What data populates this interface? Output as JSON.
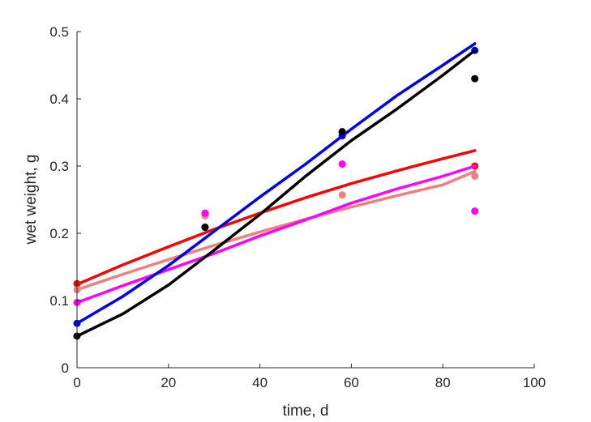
{
  "chart_data": {
    "type": "scatter",
    "title": "",
    "xlabel": "time, d",
    "ylabel": "wet weight, g",
    "xlim": [
      0,
      100
    ],
    "ylim": [
      0,
      0.5
    ],
    "xticks": [
      0,
      20,
      40,
      60,
      80,
      100
    ],
    "yticks": [
      0,
      0.1,
      0.2,
      0.3,
      0.4,
      0.5
    ],
    "xtick_labels": [
      "0",
      "20",
      "40",
      "60",
      "80",
      "100"
    ],
    "ytick_labels": [
      "0",
      "0.1",
      "0.2",
      "0.3",
      "0.4",
      "0.5"
    ],
    "grid": false,
    "legend": "none",
    "series": [
      {
        "color": "#ff0000",
        "points": [
          [
            0,
            0.125
          ],
          [
            28,
            0.228
          ],
          [
            58,
            0.351
          ],
          [
            87,
            0.3
          ]
        ],
        "fit": [
          [
            0,
            0.124
          ],
          [
            10,
            0.153
          ],
          [
            20,
            0.18
          ],
          [
            30,
            0.206
          ],
          [
            40,
            0.23
          ],
          [
            50,
            0.253
          ],
          [
            60,
            0.274
          ],
          [
            70,
            0.293
          ],
          [
            80,
            0.311
          ],
          [
            87,
            0.323
          ]
        ]
      },
      {
        "color": "#f08080",
        "points": [
          [
            0,
            0.116
          ],
          [
            28,
            0.226
          ],
          [
            58,
            0.257
          ],
          [
            87,
            0.285
          ]
        ],
        "fit": [
          [
            0,
            0.116
          ],
          [
            10,
            0.139
          ],
          [
            20,
            0.161
          ],
          [
            30,
            0.182
          ],
          [
            40,
            0.202
          ],
          [
            50,
            0.221
          ],
          [
            60,
            0.239
          ],
          [
            70,
            0.256
          ],
          [
            80,
            0.272
          ],
          [
            87,
            0.292
          ]
        ]
      },
      {
        "color": "#ff00ff",
        "points": [
          [
            0,
            0.097
          ],
          [
            28,
            0.23
          ],
          [
            58,
            0.303
          ],
          [
            87,
            0.233
          ]
        ],
        "fit": [
          [
            0,
            0.097
          ],
          [
            10,
            0.122
          ],
          [
            20,
            0.146
          ],
          [
            30,
            0.17
          ],
          [
            40,
            0.196
          ],
          [
            50,
            0.22
          ],
          [
            60,
            0.245
          ],
          [
            70,
            0.266
          ],
          [
            80,
            0.285
          ],
          [
            87,
            0.3
          ]
        ]
      },
      {
        "color": "#0000ee",
        "points": [
          [
            0,
            0.066
          ],
          [
            28,
            0.209
          ],
          [
            58,
            0.345
          ],
          [
            87,
            0.472
          ]
        ],
        "fit": [
          [
            0,
            0.066
          ],
          [
            10,
            0.106
          ],
          [
            20,
            0.152
          ],
          [
            30,
            0.203
          ],
          [
            40,
            0.254
          ],
          [
            50,
            0.303
          ],
          [
            60,
            0.355
          ],
          [
            70,
            0.405
          ],
          [
            80,
            0.45
          ],
          [
            87,
            0.482
          ]
        ]
      },
      {
        "color": "#000000",
        "points": [
          [
            0,
            0.047
          ],
          [
            28,
            0.209
          ],
          [
            58,
            0.351
          ],
          [
            87,
            0.43
          ]
        ],
        "fit": [
          [
            0,
            0.047
          ],
          [
            10,
            0.08
          ],
          [
            20,
            0.123
          ],
          [
            30,
            0.175
          ],
          [
            40,
            0.228
          ],
          [
            50,
            0.285
          ],
          [
            60,
            0.338
          ],
          [
            70,
            0.385
          ],
          [
            80,
            0.435
          ],
          [
            87,
            0.472
          ]
        ]
      }
    ]
  }
}
